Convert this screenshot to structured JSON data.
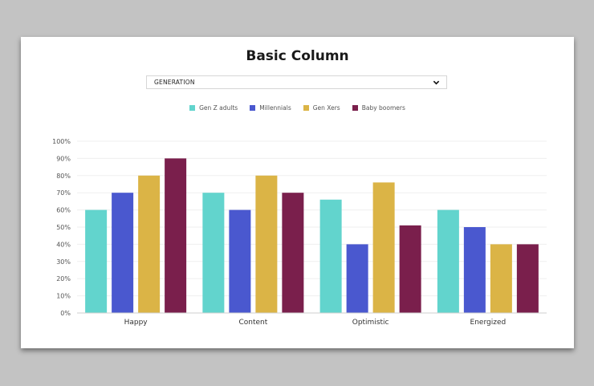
{
  "title": "Basic Column",
  "dropdown": {
    "value": "GENERATION",
    "icon": "chevron-down-icon"
  },
  "chart_data": {
    "type": "bar",
    "title": "Basic Column",
    "categories": [
      "Happy",
      "Content",
      "Optimistic",
      "Energized"
    ],
    "series": [
      {
        "name": "Gen Z adults",
        "color": "#62d4cd",
        "values": [
          60,
          70,
          66,
          60
        ]
      },
      {
        "name": "Millennials",
        "color": "#4a58cf",
        "values": [
          70,
          60,
          40,
          50
        ]
      },
      {
        "name": "Gen Xers",
        "color": "#dbb446",
        "values": [
          80,
          80,
          76,
          40
        ]
      },
      {
        "name": "Baby boomers",
        "color": "#7a1f4c",
        "values": [
          90,
          70,
          51,
          40
        ]
      }
    ],
    "ylim": [
      0,
      100
    ],
    "yticks": [
      "0%",
      "10%",
      "20%",
      "30%",
      "40%",
      "50%",
      "60%",
      "70%",
      "80%",
      "90%",
      "100%"
    ],
    "xlabel": "",
    "ylabel": "",
    "grid": true,
    "legend": "top-center"
  }
}
